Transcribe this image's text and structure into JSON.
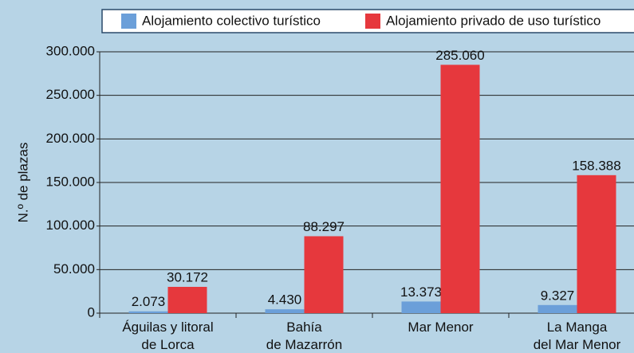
{
  "chart_data": {
    "type": "bar",
    "y_label": "N.º de plazas",
    "categories": [
      "Águilas y litoral\nde Lorca",
      "Bahía\nde Mazarrón",
      "Mar Menor",
      "La Manga\ndel Mar Menor"
    ],
    "series": [
      {
        "name": "Alojamiento colectivo turístico",
        "color": "#6b9fd9",
        "values": [
          2073,
          4430,
          13373,
          9327
        ],
        "value_labels": [
          "2.073",
          "4.430",
          "13.373",
          "9.327"
        ]
      },
      {
        "name": "Alojamiento privado de uso turístico",
        "color": "#e6383d",
        "values": [
          30172,
          88297,
          285060,
          158388
        ],
        "value_labels": [
          "30.172",
          "88.297",
          "285.060",
          "158.388"
        ]
      }
    ],
    "ylim": [
      0,
      300000
    ],
    "yticks": [
      0,
      {
        "value": 50000,
        "label": "50.000"
      },
      {
        "value": 100000,
        "label": "100.000"
      },
      {
        "value": 150000,
        "label": "150.000"
      },
      {
        "value": 200000,
        "label": "200.000"
      },
      {
        "value": 250000,
        "label": "250.000"
      },
      {
        "value": 300000,
        "label": "300.000"
      }
    ],
    "grid": true,
    "legend": "top"
  }
}
